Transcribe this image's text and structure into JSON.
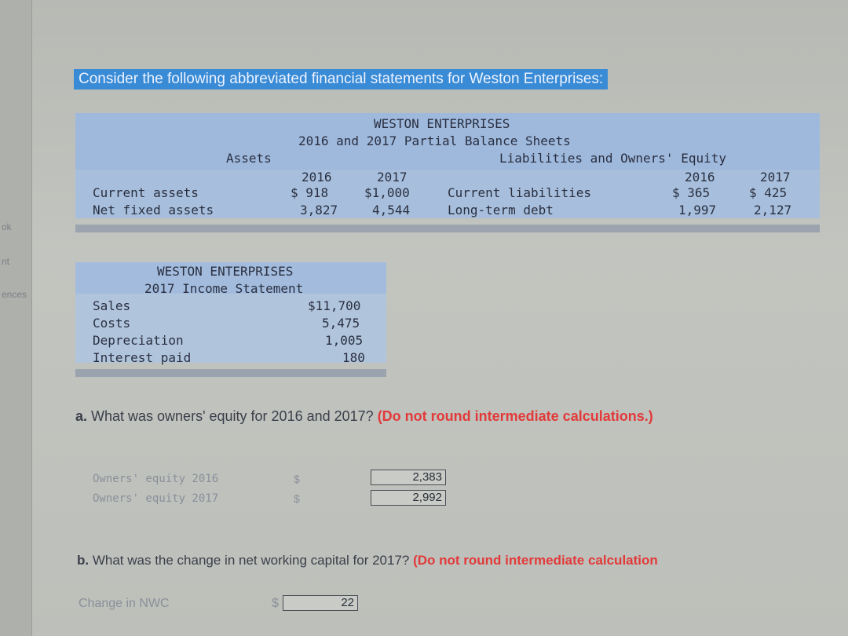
{
  "sidebar": {
    "items": [
      "ok",
      "nt",
      "ences"
    ]
  },
  "intro": "Consider the following abbreviated financial statements for Weston Enterprises:",
  "balance_sheet": {
    "company": "WESTON ENTERPRISES",
    "title": "2016 and 2017 Partial Balance Sheets",
    "assets_header": "Assets",
    "liab_header": "Liabilities and Owners' Equity",
    "years": [
      "2016",
      "2017"
    ],
    "assets": [
      {
        "label": "Current assets",
        "v2016": "$ 918",
        "v2017": "$1,000"
      },
      {
        "label": "Net fixed assets",
        "v2016": "3,827",
        "v2017": "4,544"
      }
    ],
    "liabilities": [
      {
        "label": "Current liabilities",
        "v2016": "$ 365",
        "v2017": "$ 425"
      },
      {
        "label": "Long-term debt",
        "v2016": "1,997",
        "v2017": "2,127"
      }
    ]
  },
  "income_statement": {
    "company": "WESTON ENTERPRISES",
    "title": "2017 Income Statement",
    "rows": [
      {
        "label": "Sales",
        "value": "$11,700"
      },
      {
        "label": "Costs",
        "value": "5,475"
      },
      {
        "label": "Depreciation",
        "value": "1,005"
      },
      {
        "label": "Interest paid",
        "value": "180"
      }
    ]
  },
  "question_a": {
    "prefix": "a.",
    "text": " What was owners' equity for 2016 and 2017?",
    "note": " (Do not round intermediate calculations.)",
    "answers": [
      {
        "label": "Owners' equity 2016",
        "currency": "$",
        "value": "2,383"
      },
      {
        "label": "Owners' equity 2017",
        "currency": "$",
        "value": "2,992"
      }
    ]
  },
  "question_b": {
    "prefix": "b.",
    "text": " What was the change in net working capital for 2017?",
    "note": " (Do not round intermediate calculation",
    "answer": {
      "label": "Change in NWC",
      "currency": "$",
      "value": "22"
    }
  }
}
